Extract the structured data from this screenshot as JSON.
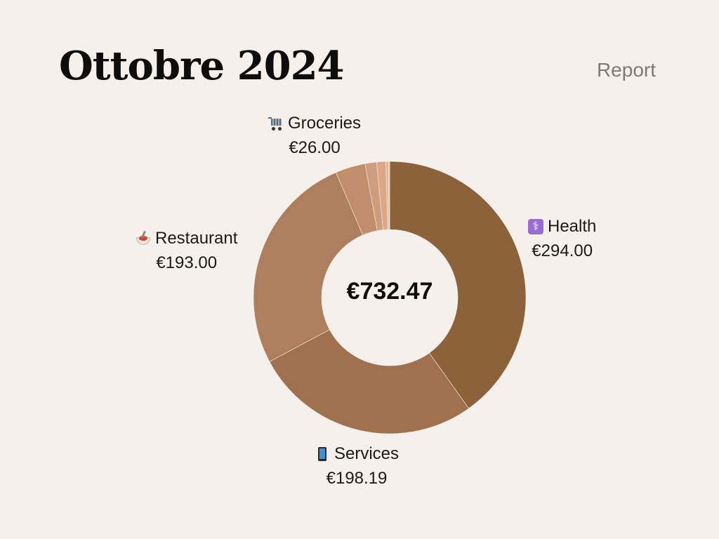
{
  "header": {
    "title": "Ottobre 2024",
    "report_label": "Report"
  },
  "chart_data": {
    "type": "pie",
    "total_label": "€732.47",
    "slices": [
      {
        "name": "Health",
        "value": 294.0,
        "label": "€294.00",
        "icon": "health-icon",
        "color": "#8c623a"
      },
      {
        "name": "Services",
        "value": 198.19,
        "label": "€198.19",
        "icon": "phone-icon",
        "color": "#a0714f"
      },
      {
        "name": "Restaurant",
        "value": 193.0,
        "label": "€193.00",
        "icon": "pasta-icon",
        "color": "#ae7f5f"
      },
      {
        "name": "Groceries",
        "value": 26.0,
        "label": "€26.00",
        "icon": "cart-icon",
        "color": "#c08e6c"
      },
      {
        "value": 10.0,
        "color": "#cf9c7d"
      },
      {
        "value": 8.0,
        "color": "#dca88a"
      },
      {
        "value": 2.28,
        "color": "#e9b596"
      },
      {
        "value": 1.0,
        "color": "#d8c0a8"
      }
    ]
  }
}
